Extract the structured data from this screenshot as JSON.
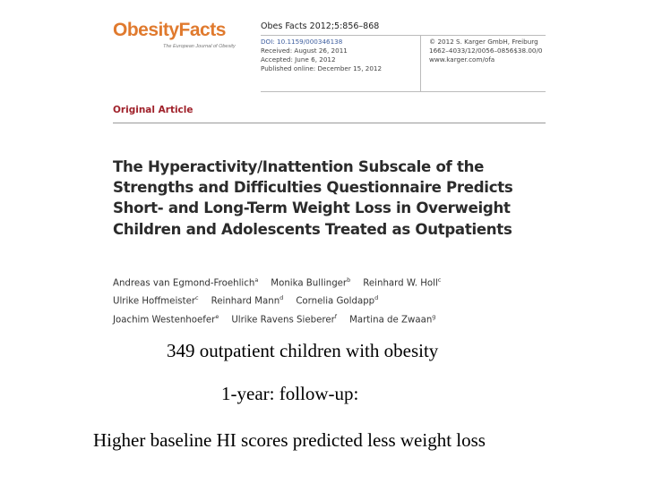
{
  "journal": {
    "logo": "ObesityFacts",
    "logo_subtitle": "The European Journal of Obesity",
    "citation": "Obes Facts 2012;5:856–868",
    "left_lines": [
      "DOI: 10.1159/000346138",
      "Received: August 26, 2011",
      "Accepted: June 6, 2012",
      "Published online: December 15, 2012"
    ],
    "right_lines": [
      "© 2012 S. Karger GmbH, Freiburg",
      "1662–4033/12/0056–0856$38.00/0",
      "www.karger.com/ofa"
    ]
  },
  "article": {
    "section": "Original Article",
    "title": "The Hyperactivity/Inattention Subscale of the Strengths and Difficulties Questionnaire Predicts Short- and Long-Term Weight Loss in Overweight Children and Adolescents Treated as Outpatients",
    "authors": [
      {
        "name": "Andreas van Egmond-Froehlich",
        "sup": "a"
      },
      {
        "name": "Monika Bullinger",
        "sup": "b"
      },
      {
        "name": "Reinhard W. Holl",
        "sup": "c"
      },
      {
        "name": "Ulrike Hoffmeister",
        "sup": "c"
      },
      {
        "name": "Reinhard Mann",
        "sup": "d"
      },
      {
        "name": "Cornelia Goldapp",
        "sup": "d"
      },
      {
        "name": "Joachim Westenhoefer",
        "sup": "e"
      },
      {
        "name": "Ulrike Ravens Sieberer",
        "sup": "f"
      },
      {
        "name": "Martina de Zwaan",
        "sup": "g"
      }
    ]
  },
  "bullets": {
    "sample": "349 outpatient children with obesity",
    "followup": "1-year: follow-up:",
    "finding": "Higher baseline HI scores predicted less weight loss"
  }
}
